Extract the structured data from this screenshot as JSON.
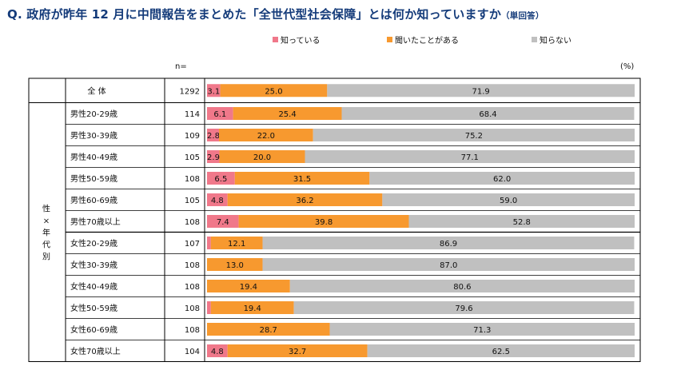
{
  "title": "Q. 政府が昨年 12 月に中間報告をまとめた「全世代型社会保障」とは何か知っていますか",
  "title_note": "（単回答）",
  "n_header": "n=",
  "unit": "(%)",
  "colors": {
    "know": "#f0788a",
    "heard": "#f7992f",
    "dont_know": "#c0c0c0",
    "title": "#143b7a"
  },
  "chart_data": {
    "type": "bar",
    "orientation": "horizontal",
    "stacked": "percent",
    "xlim": [
      0,
      100
    ],
    "legend_position": "top",
    "group_label": "性×年代別",
    "categories": [
      "全 体",
      "男性20-29歳",
      "男性30-39歳",
      "男性40-49歳",
      "男性50-59歳",
      "男性60-69歳",
      "男性70歳以上",
      "女性20-29歳",
      "女性30-39歳",
      "女性40-49歳",
      "女性50-59歳",
      "女性60-69歳",
      "女性70歳以上"
    ],
    "n": [
      1292,
      114,
      109,
      105,
      108,
      105,
      108,
      107,
      108,
      108,
      108,
      108,
      104
    ],
    "series": [
      {
        "name": "知っている",
        "values": [
          3.1,
          6.1,
          2.8,
          2.9,
          6.5,
          4.8,
          7.4,
          0.9,
          0.0,
          0.0,
          0.9,
          0.0,
          4.8
        ],
        "labels": [
          "3.1",
          "6.1",
          "2.8",
          "2.9",
          "6.5",
          "4.8",
          "7.4",
          "",
          "",
          "",
          "",
          "",
          "4.8"
        ]
      },
      {
        "name": "聞いたことがある",
        "values": [
          25.0,
          25.4,
          22.0,
          20.0,
          31.5,
          36.2,
          39.8,
          12.1,
          13.0,
          19.4,
          19.4,
          28.7,
          32.7
        ],
        "labels": [
          "25.0",
          "25.4",
          "22.0",
          "20.0",
          "31.5",
          "36.2",
          "39.8",
          "12.1",
          "13.0",
          "19.4",
          "19.4",
          "28.7",
          "32.7"
        ]
      },
      {
        "name": "知らない",
        "values": [
          71.9,
          68.4,
          75.2,
          77.1,
          62.0,
          59.0,
          52.8,
          86.9,
          87.0,
          80.6,
          79.6,
          71.3,
          62.5
        ],
        "labels": [
          "71.9",
          "68.4",
          "75.2",
          "77.1",
          "62.0",
          "59.0",
          "52.8",
          "86.9",
          "87.0",
          "80.6",
          "79.6",
          "71.3",
          "62.5"
        ]
      }
    ]
  }
}
